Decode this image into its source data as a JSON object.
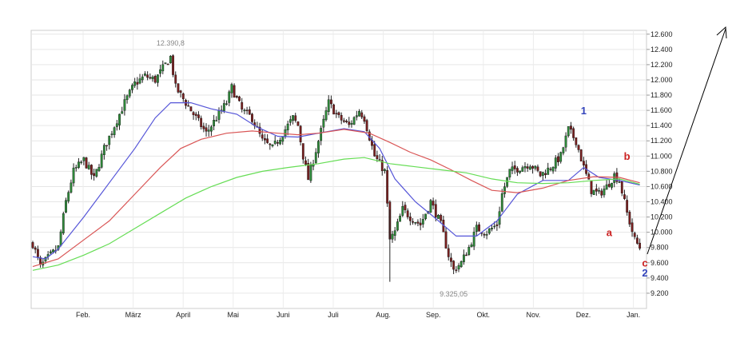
{
  "chart_data": {
    "type": "candlestick",
    "x_ticks": [
      "Feb.",
      "März",
      "April",
      "Mai",
      "Juni",
      "Juli",
      "Aug.",
      "Sep.",
      "Okt.",
      "Nov.",
      "Dez.",
      "Jan."
    ],
    "y_ticks": [
      "12.600",
      "12.400",
      "12.200",
      "12.000",
      "11.800",
      "11.600",
      "11.400",
      "11.200",
      "11.000",
      "10.800",
      "10.600",
      "10.400",
      "10.200",
      "10.000",
      "9.800",
      "9.600",
      "9.400",
      "9.200"
    ],
    "ylim": [
      9000,
      12650
    ],
    "grid": true,
    "price_path": [
      [
        0,
        9850
      ],
      [
        3,
        9550
      ],
      [
        7,
        9700
      ],
      [
        10,
        9800
      ],
      [
        13,
        10400
      ],
      [
        16,
        10800
      ],
      [
        20,
        10950
      ],
      [
        24,
        10700
      ],
      [
        28,
        11100
      ],
      [
        32,
        11400
      ],
      [
        36,
        11700
      ],
      [
        40,
        11950
      ],
      [
        44,
        12050
      ],
      [
        48,
        12000
      ],
      [
        52,
        12200
      ],
      [
        54,
        12300
      ],
      [
        56,
        11900
      ],
      [
        60,
        11700
      ],
      [
        64,
        11500
      ],
      [
        68,
        11300
      ],
      [
        72,
        11500
      ],
      [
        76,
        11700
      ],
      [
        78,
        11900
      ],
      [
        82,
        11600
      ],
      [
        86,
        11500
      ],
      [
        90,
        11200
      ],
      [
        94,
        11100
      ],
      [
        98,
        11300
      ],
      [
        102,
        11500
      ],
      [
        104,
        11400
      ],
      [
        106,
        11000
      ],
      [
        108,
        10700
      ],
      [
        112,
        11200
      ],
      [
        116,
        11700
      ],
      [
        120,
        11500
      ],
      [
        124,
        11400
      ],
      [
        128,
        11600
      ],
      [
        130,
        11500
      ],
      [
        134,
        11000
      ],
      [
        138,
        10800
      ],
      [
        140,
        9900
      ],
      [
        142,
        10000
      ],
      [
        145,
        10300
      ],
      [
        148,
        10200
      ],
      [
        152,
        10100
      ],
      [
        156,
        10400
      ],
      [
        160,
        10100
      ],
      [
        163,
        9700
      ],
      [
        165,
        9500
      ],
      [
        168,
        9600
      ],
      [
        171,
        9800
      ],
      [
        174,
        10050
      ],
      [
        178,
        10000
      ],
      [
        182,
        10100
      ],
      [
        184,
        10500
      ],
      [
        187,
        10800
      ],
      [
        191,
        10850
      ],
      [
        195,
        10900
      ],
      [
        199,
        10750
      ],
      [
        203,
        10850
      ],
      [
        207,
        11000
      ],
      [
        210,
        11350
      ],
      [
        213,
        11200
      ],
      [
        216,
        10850
      ],
      [
        219,
        10550
      ],
      [
        222,
        10500
      ],
      [
        225,
        10600
      ],
      [
        228,
        10750
      ],
      [
        230,
        10680
      ],
      [
        233,
        10250
      ],
      [
        236,
        9900
      ],
      [
        238,
        9800
      ]
    ],
    "moving_averages": [
      {
        "color": "#5555d8",
        "points": [
          [
            0,
            9680
          ],
          [
            5,
            9650
          ],
          [
            10,
            9780
          ],
          [
            20,
            10200
          ],
          [
            30,
            10650
          ],
          [
            40,
            11100
          ],
          [
            48,
            11500
          ],
          [
            54,
            11700
          ],
          [
            62,
            11700
          ],
          [
            70,
            11620
          ],
          [
            80,
            11550
          ],
          [
            88,
            11380
          ],
          [
            96,
            11260
          ],
          [
            104,
            11250
          ],
          [
            112,
            11300
          ],
          [
            122,
            11360
          ],
          [
            130,
            11320
          ],
          [
            136,
            11100
          ],
          [
            142,
            10700
          ],
          [
            150,
            10400
          ],
          [
            158,
            10180
          ],
          [
            166,
            9950
          ],
          [
            174,
            9950
          ],
          [
            182,
            10150
          ],
          [
            190,
            10500
          ],
          [
            200,
            10680
          ],
          [
            210,
            10680
          ],
          [
            216,
            10850
          ],
          [
            222,
            10720
          ],
          [
            230,
            10680
          ],
          [
            238,
            10620
          ]
        ]
      },
      {
        "color": "#d95555",
        "points": [
          [
            0,
            9550
          ],
          [
            10,
            9650
          ],
          [
            20,
            9900
          ],
          [
            30,
            10150
          ],
          [
            40,
            10500
          ],
          [
            50,
            10850
          ],
          [
            58,
            11100
          ],
          [
            66,
            11220
          ],
          [
            76,
            11300
          ],
          [
            86,
            11330
          ],
          [
            96,
            11300
          ],
          [
            104,
            11280
          ],
          [
            112,
            11300
          ],
          [
            122,
            11350
          ],
          [
            132,
            11300
          ],
          [
            140,
            11180
          ],
          [
            148,
            11050
          ],
          [
            156,
            10950
          ],
          [
            164,
            10820
          ],
          [
            172,
            10680
          ],
          [
            180,
            10550
          ],
          [
            190,
            10520
          ],
          [
            200,
            10580
          ],
          [
            210,
            10680
          ],
          [
            220,
            10730
          ],
          [
            230,
            10720
          ],
          [
            238,
            10650
          ]
        ]
      },
      {
        "color": "#66dd55",
        "points": [
          [
            0,
            9500
          ],
          [
            10,
            9570
          ],
          [
            20,
            9700
          ],
          [
            30,
            9850
          ],
          [
            40,
            10050
          ],
          [
            50,
            10250
          ],
          [
            60,
            10450
          ],
          [
            70,
            10600
          ],
          [
            80,
            10720
          ],
          [
            90,
            10800
          ],
          [
            100,
            10850
          ],
          [
            112,
            10900
          ],
          [
            122,
            10960
          ],
          [
            130,
            10980
          ],
          [
            140,
            10900
          ],
          [
            150,
            10860
          ],
          [
            160,
            10820
          ],
          [
            170,
            10780
          ],
          [
            180,
            10700
          ],
          [
            190,
            10650
          ],
          [
            200,
            10640
          ],
          [
            210,
            10650
          ],
          [
            220,
            10680
          ],
          [
            230,
            10700
          ],
          [
            238,
            10630
          ]
        ]
      }
    ],
    "annotations": [
      {
        "text": "12.390,8",
        "x": 54,
        "y": 12390
      },
      {
        "text": "9.325,05",
        "x": 165,
        "y": 9325
      }
    ],
    "wave_labels": [
      {
        "text": "1",
        "color": "#3344bb",
        "x": 216,
        "y": 11550
      },
      {
        "text": "a",
        "color": "#cc2222",
        "x": 226,
        "y": 9950
      },
      {
        "text": "b",
        "color": "#cc2222",
        "x": 233,
        "y": 10950
      },
      {
        "text": "c",
        "color": "#cc2222",
        "x": 240,
        "y": 9550
      },
      {
        "text": "2",
        "color": "#3344bb",
        "x": 240,
        "y": 9420
      }
    ]
  }
}
